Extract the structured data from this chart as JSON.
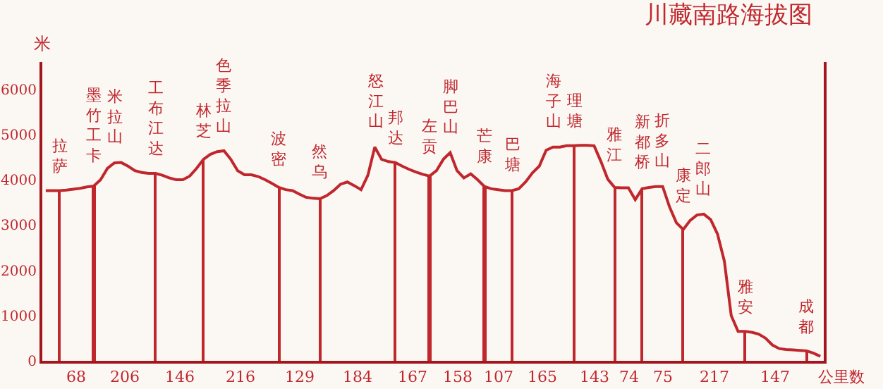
{
  "chart_data": {
    "type": "line",
    "title": "川藏南路海拔图",
    "ylabel": "米",
    "xlabel": "公里数",
    "categories": [
      null,
      null,
      "拉萨",
      null,
      null,
      null,
      null,
      "墨竹工卡",
      null,
      null,
      "米拉山",
      null,
      null,
      null,
      null,
      null,
      "工布江达",
      null,
      null,
      null,
      null,
      null,
      null,
      "林芝",
      null,
      null,
      "色季拉山",
      null,
      null,
      null,
      null,
      null,
      null,
      null,
      "波密",
      null,
      null,
      null,
      null,
      null,
      "然乌",
      null,
      null,
      null,
      null,
      null,
      null,
      null,
      "怒江山",
      null,
      null,
      "邦达",
      null,
      null,
      null,
      null,
      "左贡",
      null,
      null,
      "脚巴山",
      null,
      null,
      null,
      null,
      "芒康",
      null,
      null,
      null,
      "巴塘",
      null,
      null,
      null,
      null,
      null,
      "海子山",
      null,
      null,
      "理塘",
      null,
      null,
      null,
      null,
      null,
      "雅江",
      null,
      null,
      null,
      "新都桥",
      null,
      null,
      "折多山",
      null,
      null,
      "康定",
      null,
      null,
      "二郎山",
      null,
      null,
      null,
      null,
      null,
      "雅安",
      null,
      null,
      null,
      null,
      null,
      null,
      null,
      null,
      "成都",
      null,
      null
    ],
    "series": [
      {
        "color": "#c0272d",
        "values": [
          3760,
          3760,
          3760,
          3770,
          3790,
          3810,
          3840,
          3860,
          4000,
          4250,
          4370,
          4380,
          4300,
          4200,
          4160,
          4140,
          4140,
          4100,
          4040,
          4000,
          4000,
          4080,
          4250,
          4450,
          4560,
          4620,
          4640,
          4450,
          4200,
          4110,
          4110,
          4070,
          4000,
          3920,
          3830,
          3780,
          3760,
          3680,
          3610,
          3590,
          3580,
          3650,
          3760,
          3900,
          3950,
          3870,
          3780,
          4100,
          4720,
          4450,
          4400,
          4380,
          4300,
          4230,
          4170,
          4120,
          4080,
          4200,
          4450,
          4600,
          4200,
          4040,
          4130,
          4000,
          3850,
          3800,
          3780,
          3760,
          3760,
          3800,
          3950,
          4150,
          4300,
          4650,
          4720,
          4720,
          4750,
          4750,
          4760,
          4760,
          4750,
          4400,
          4010,
          3830,
          3820,
          3820,
          3560,
          3800,
          3830,
          3850,
          3850,
          3400,
          3050,
          2900,
          3100,
          3220,
          3240,
          3120,
          2800,
          2200,
          1000,
          650,
          650,
          630,
          590,
          500,
          350,
          270,
          250,
          240,
          230,
          220,
          170,
          100
        ]
      },
      {
        "type": "bar",
        "color": "#c0272d",
        "values": [
          null,
          null,
          3760,
          null,
          null,
          null,
          null,
          3860,
          null,
          null,
          null,
          null,
          null,
          null,
          null,
          null,
          4140,
          null,
          null,
          null,
          null,
          null,
          null,
          4450,
          null,
          null,
          null,
          null,
          null,
          null,
          null,
          null,
          null,
          null,
          3830,
          null,
          null,
          null,
          null,
          null,
          3580,
          null,
          null,
          null,
          null,
          null,
          null,
          null,
          null,
          null,
          null,
          4380,
          null,
          null,
          null,
          null,
          4080,
          null,
          null,
          null,
          null,
          null,
          null,
          null,
          3850,
          null,
          null,
          null,
          3760,
          null,
          null,
          null,
          null,
          null,
          null,
          null,
          null,
          4750,
          null,
          null,
          null,
          null,
          null,
          3830,
          null,
          null,
          null,
          3800,
          null,
          null,
          null,
          null,
          null,
          2900,
          null,
          null,
          null,
          null,
          null,
          null,
          null,
          null,
          650,
          null,
          null,
          null,
          null,
          null,
          null,
          null,
          null,
          220,
          null,
          null
        ]
      }
    ],
    "annotations": [
      "68",
      "206",
      "146",
      "216",
      "129",
      "184",
      "167",
      "158",
      "107",
      "165",
      "143",
      "74",
      "75",
      "217",
      "147"
    ],
    "ylim": [
      0,
      6600
    ],
    "yticks": [
      0,
      1000,
      2000,
      3000,
      4000,
      5000,
      6000
    ]
  }
}
